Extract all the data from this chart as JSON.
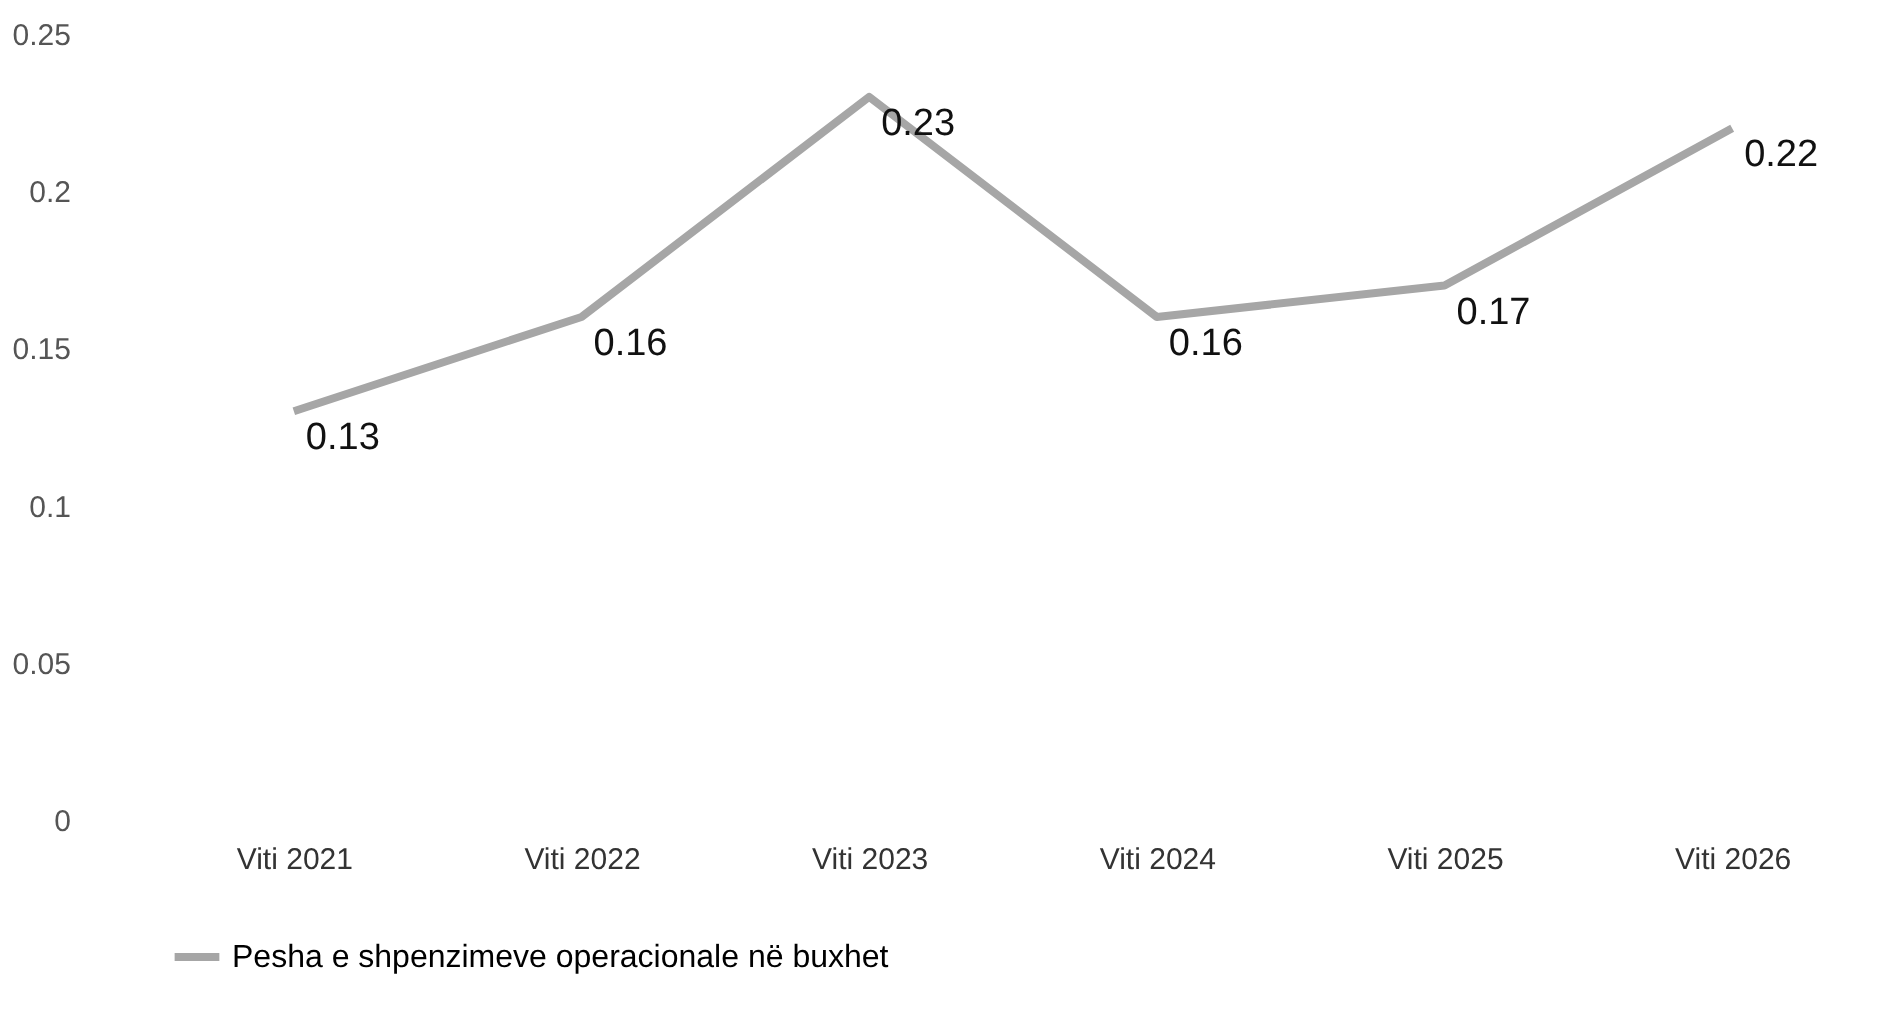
{
  "chart_data": {
    "type": "line",
    "categories": [
      "Viti 2021",
      "Viti 2022",
      "Viti 2023",
      "Viti 2024",
      "Viti 2025",
      "Viti 2026"
    ],
    "series": [
      {
        "name": "Pesha e shpenzimeve operacionale në buxhet",
        "color": "#a6a6a6",
        "values": [
          0.13,
          0.16,
          0.23,
          0.16,
          0.17,
          0.22
        ]
      }
    ],
    "ylim": [
      0,
      0.25
    ],
    "yticks": [
      0,
      0.05,
      0.1,
      0.15,
      0.2,
      0.25
    ],
    "grid": false,
    "legend": "bottom",
    "data_labels": true,
    "marker": "none",
    "line_style": "solid"
  }
}
